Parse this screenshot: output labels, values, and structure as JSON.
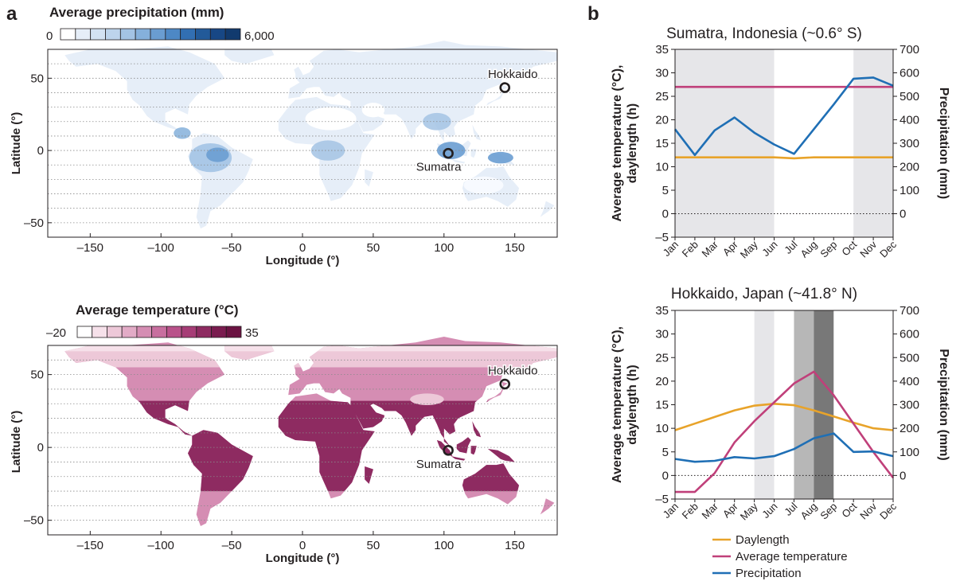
{
  "panel_labels": [
    "a",
    "b"
  ],
  "colors": {
    "precipitation": "#1f6fb5",
    "temperature": "#c0407a",
    "daylength": "#e8a32a",
    "precip_ramp": [
      "#ffffff",
      "#e6eef8",
      "#d3e2f2",
      "#bdd4ec",
      "#a3c3e4",
      "#85b0db",
      "#6a9dd1",
      "#4d88c5",
      "#326fb2",
      "#225a99",
      "#174785",
      "#113a6e"
    ],
    "temp_ramp": [
      "#ffffff",
      "#f6e1ea",
      "#edc8d8",
      "#e2abc6",
      "#d58db3",
      "#c86f9f",
      "#b9528a",
      "#a63d76",
      "#8e2b61",
      "#7a1c4f",
      "#6b1342"
    ],
    "shade_light": "#e6e6e9",
    "shade_mid": "#b7b7b7",
    "shade_dark": "#787878",
    "land_precip": "#e3edf8",
    "land_temp_base": "#e7b1cb"
  },
  "maps": {
    "precip": {
      "title": "Average precipitation (mm)",
      "scale_min": "0",
      "scale_max": "6,000"
    },
    "temp": {
      "title": "Average temperature (°C)",
      "scale_min": "–20",
      "scale_max": "35"
    },
    "xlabel": "Longitude (°)",
    "ylabel": "Latitude (°)",
    "xticks": [
      -150,
      -100,
      -50,
      0,
      50,
      100,
      150
    ],
    "xtick_labels": [
      "–150",
      "–100",
      "–50",
      "0",
      "50",
      "100",
      "150"
    ],
    "xlim": [
      -180,
      180
    ],
    "yticks": [
      -50,
      0,
      50
    ],
    "ytick_labels": [
      "–50",
      "0",
      "50"
    ],
    "ylim": [
      -60,
      70
    ],
    "sites": [
      {
        "name": "Hokkaido",
        "lon": 143,
        "lat": 43.5
      },
      {
        "name": "Sumatra",
        "lon": 103,
        "lat": -2
      }
    ]
  },
  "chart_data": [
    {
      "type": "line",
      "title": "Sumatra, Indonesia (~0.6° S)",
      "ylabel_left": [
        "Average temperature (°C),",
        "daylength (h)"
      ],
      "ylabel_right": "Precipitation (mm)",
      "categories": [
        "Jan",
        "Feb",
        "Mar",
        "Apr",
        "May",
        "Jun",
        "Jul",
        "Aug",
        "Sep",
        "Oct",
        "Nov",
        "Dec"
      ],
      "ylim_left": [
        -5,
        35
      ],
      "yticks_left": [
        35,
        30,
        25,
        20,
        15,
        10,
        5,
        0,
        -5
      ],
      "ytick_labels_left": [
        "35",
        "30",
        "25",
        "20",
        "15",
        "10",
        "5",
        "0",
        "–5"
      ],
      "ylim_right": [
        -100,
        700
      ],
      "yticks_right": [
        700,
        600,
        500,
        400,
        300,
        200,
        100,
        0
      ],
      "ytick_labels_right": [
        "700",
        "600",
        "500",
        "400",
        "300",
        "200",
        "100",
        "0"
      ],
      "shaded_months": [
        {
          "from": "Jan",
          "to": "Jun",
          "shade": "light"
        },
        {
          "from": "Oct",
          "to": "Dec",
          "shade": "light"
        }
      ],
      "zero_line": true,
      "series": [
        {
          "name": "Daylength",
          "axis": "left",
          "color": "#e8a32a",
          "values": [
            12.0,
            12.0,
            12.0,
            12.0,
            12.0,
            12.0,
            11.8,
            12.0,
            12.0,
            12.0,
            12.0,
            12.0
          ]
        },
        {
          "name": "Average temperature",
          "axis": "left",
          "color": "#c0407a",
          "values": [
            27,
            27,
            27,
            27,
            27,
            27,
            27,
            27,
            27,
            27,
            27,
            27
          ]
        },
        {
          "name": "Precipitation",
          "axis": "right",
          "color": "#1f6fb5",
          "values": [
            360,
            250,
            355,
            410,
            345,
            295,
            255,
            360,
            465,
            575,
            580,
            545
          ]
        }
      ]
    },
    {
      "type": "line",
      "title": "Hokkaido, Japan (~41.8° N)",
      "ylabel_left": [
        "Average temperature (°C),",
        "daylength (h)"
      ],
      "ylabel_right": "Precipitation (mm)",
      "categories": [
        "Jan",
        "Feb",
        "Mar",
        "Apr",
        "May",
        "Jun",
        "Jul",
        "Aug",
        "Sep",
        "Oct",
        "Nov",
        "Dec"
      ],
      "ylim_left": [
        -5,
        35
      ],
      "yticks_left": [
        35,
        30,
        25,
        20,
        15,
        10,
        5,
        0,
        -5
      ],
      "ytick_labels_left": [
        "35",
        "30",
        "25",
        "20",
        "15",
        "10",
        "5",
        "0",
        "–5"
      ],
      "ylim_right": [
        -100,
        700
      ],
      "yticks_right": [
        700,
        600,
        500,
        400,
        300,
        200,
        100,
        0
      ],
      "ytick_labels_right": [
        "700",
        "600",
        "500",
        "400",
        "300",
        "200",
        "100",
        "0"
      ],
      "shaded_months": [
        {
          "from": "May",
          "to": "Jun",
          "shade": "light"
        },
        {
          "from": "Jul",
          "to": "Aug",
          "shade": "mid"
        },
        {
          "from": "Aug",
          "to": "Sep",
          "shade": "dark"
        }
      ],
      "zero_line": true,
      "series": [
        {
          "name": "Daylength",
          "axis": "left",
          "color": "#e8a32a",
          "values": [
            9.6,
            11.0,
            12.4,
            13.8,
            14.8,
            15.2,
            14.9,
            13.8,
            12.5,
            11.2,
            10.0,
            9.6
          ]
        },
        {
          "name": "Average temperature",
          "axis": "left",
          "color": "#c0407a",
          "values": [
            -3.5,
            -3.5,
            0.5,
            7.0,
            11.5,
            15.5,
            19.5,
            22.0,
            17.0,
            11.0,
            5.0,
            -0.5
          ]
        },
        {
          "name": "Precipitation",
          "axis": "right",
          "color": "#1f6fb5",
          "values": [
            70,
            58,
            62,
            78,
            72,
            82,
            112,
            158,
            178,
            100,
            102,
            82
          ]
        }
      ]
    }
  ],
  "legend": [
    {
      "label": "Daylength",
      "color": "#e8a32a"
    },
    {
      "label": "Average temperature",
      "color": "#c0407a"
    },
    {
      "label": "Precipitation",
      "color": "#1f6fb5"
    }
  ]
}
